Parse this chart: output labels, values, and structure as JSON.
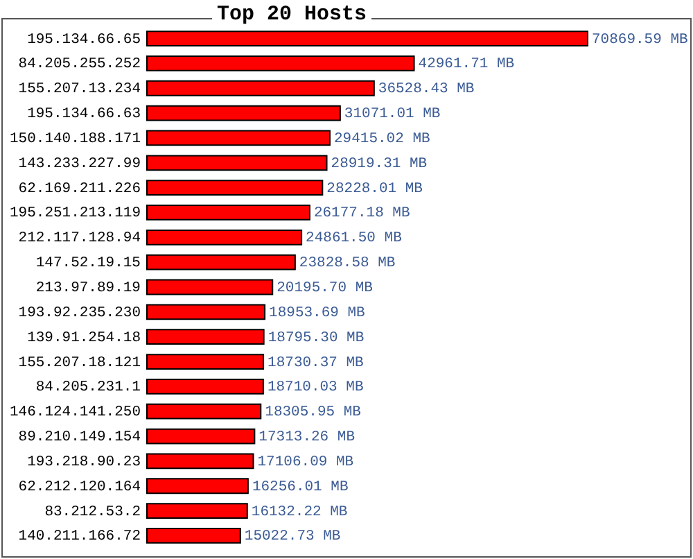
{
  "chart_data": {
    "type": "bar",
    "title": "Top 20 Hosts",
    "orientation": "horizontal",
    "color": "#ff0000",
    "categories": [
      "195.134.66.65",
      "84.205.255.252",
      "155.207.13.234",
      "195.134.66.63",
      "150.140.188.171",
      "143.233.227.99",
      "62.169.211.226",
      "195.251.213.119",
      "212.117.128.94",
      "147.52.19.15",
      "213.97.89.19",
      "193.92.235.230",
      "139.91.254.18",
      "155.207.18.121",
      "84.205.231.1",
      "146.124.141.250",
      "89.210.149.154",
      "193.218.90.23",
      "62.212.120.164",
      "83.212.53.2",
      "140.211.166.72"
    ],
    "values": [
      70869.59,
      42961.71,
      36528.43,
      31071.01,
      29415.02,
      28919.31,
      28228.01,
      26177.18,
      24861.5,
      23828.58,
      20195.7,
      18953.69,
      18795.3,
      18730.37,
      18710.03,
      18305.95,
      17313.26,
      17106.09,
      16256.01,
      16132.22,
      15022.73
    ],
    "value_labels": [
      "70869.59 MB",
      "42961.71 MB",
      "36528.43 MB",
      "31071.01 MB",
      "29415.02 MB",
      "28919.31 MB",
      "28228.01 MB",
      "26177.18 MB",
      "24861.50 MB",
      "23828.58 MB",
      "20195.70 MB",
      "18953.69 MB",
      "18795.30 MB",
      "18730.37 MB",
      "18710.03 MB",
      "18305.95 MB",
      "17313.26 MB",
      "17106.09 MB",
      "16256.01 MB",
      "16132.22 MB",
      "15022.73 MB"
    ]
  }
}
